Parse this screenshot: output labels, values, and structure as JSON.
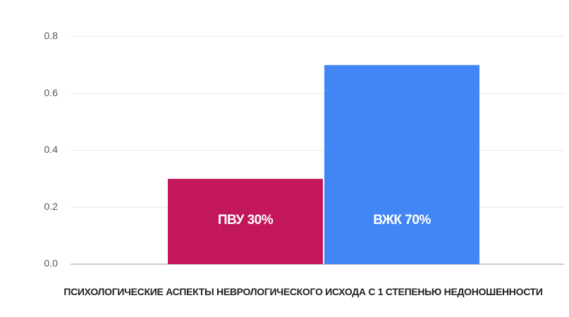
{
  "chart_data": {
    "type": "bar",
    "values": [
      0.3,
      0.7
    ],
    "value_labels": [
      "ПВУ 30%",
      "ВЖК 70%"
    ],
    "colors": [
      "#c2185b",
      "#4285f4"
    ],
    "x_label": "ПСИХОЛОГИЧЕСКИЕ АСПЕКТЫ НЕВРОЛОГИЧЕСКОГО ИСХОДА С 1 СТЕПЕНЬЮ НЕДОНОШЕННОСТИ",
    "ylim": [
      0,
      0.8
    ],
    "yticks": [
      {
        "value": 0,
        "label": "0.0"
      },
      0.2,
      0.4,
      0.6,
      0.8
    ],
    "grid": true
  }
}
